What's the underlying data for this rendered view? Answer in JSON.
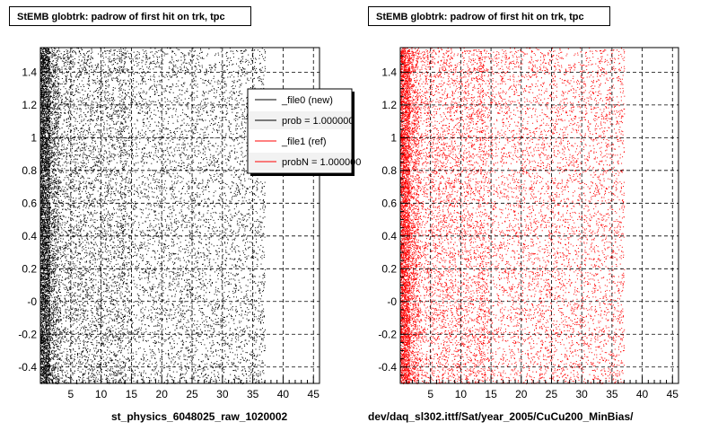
{
  "footer_text": "",
  "chart_data": [
    {
      "type": "scatter",
      "title": "StEMB globtrk: padrow of first hit on trk, tpc",
      "xlabel": "st_physics_6048025_raw_1020002",
      "ylabel": "",
      "xlim": [
        0,
        46
      ],
      "ylim": [
        -0.5,
        1.55
      ],
      "xticks": [
        5,
        10,
        15,
        20,
        25,
        30,
        35,
        40,
        45
      ],
      "yticks": [
        -0.4,
        -0.2,
        0,
        0.2,
        0.4,
        0.6,
        0.8,
        1,
        1.2,
        1.4
      ],
      "ytick_labels": [
        "-0.4",
        "-0.2",
        "-0",
        "0.2",
        "0.4",
        "0.6",
        "0.8",
        "1",
        "1.2",
        "1.4"
      ],
      "grid": true,
      "legend_position": "top-right",
      "legend": [
        {
          "label": "_file0 (new)",
          "color": "#000000"
        },
        {
          "label": "prob = 1.000000",
          "color": "#000000"
        },
        {
          "label": "_file1 (ref)",
          "color": "#ff0000"
        },
        {
          "label": "probN = 1.000000",
          "color": "#ff0000"
        }
      ],
      "series": [
        {
          "color": "#000000",
          "density": [
            {
              "x": [
                0,
                1.5
              ],
              "weight": 1.0
            },
            {
              "x": [
                1.5,
                3
              ],
              "weight": 0.35
            },
            {
              "x": [
                3,
                13
              ],
              "weight": 0.14
            },
            {
              "x": [
                13,
                14
              ],
              "weight": 0.2
            },
            {
              "x": [
                14,
                37
              ],
              "weight": 0.09
            },
            {
              "x": [
                37,
                46
              ],
              "weight": 0.0
            }
          ]
        }
      ]
    },
    {
      "type": "scatter",
      "title": "StEMB globtrk: padrow of first hit on trk, tpc",
      "xlabel": "dev/daq_sl302.ittf/Sat/year_2005/CuCu200_MinBias/",
      "ylabel": "",
      "xlim": [
        0,
        46
      ],
      "ylim": [
        -0.5,
        1.55
      ],
      "xticks": [
        5,
        10,
        15,
        20,
        25,
        30,
        35,
        40,
        45
      ],
      "yticks": [
        -0.4,
        -0.2,
        0,
        0.2,
        0.4,
        0.6,
        0.8,
        1,
        1.2,
        1.4
      ],
      "ytick_labels": [
        "-0.4",
        "-0.2",
        "-0",
        "0.2",
        "0.4",
        "0.6",
        "0.8",
        "1",
        "1.2",
        "1.4"
      ],
      "grid": true,
      "series": [
        {
          "color": "#ff0000",
          "density": [
            {
              "x": [
                0,
                1.5
              ],
              "weight": 1.0
            },
            {
              "x": [
                1.5,
                3
              ],
              "weight": 0.35
            },
            {
              "x": [
                3,
                13
              ],
              "weight": 0.14
            },
            {
              "x": [
                13,
                14
              ],
              "weight": 0.2
            },
            {
              "x": [
                14,
                37
              ],
              "weight": 0.09
            },
            {
              "x": [
                37,
                46
              ],
              "weight": 0.0
            }
          ]
        }
      ]
    }
  ]
}
